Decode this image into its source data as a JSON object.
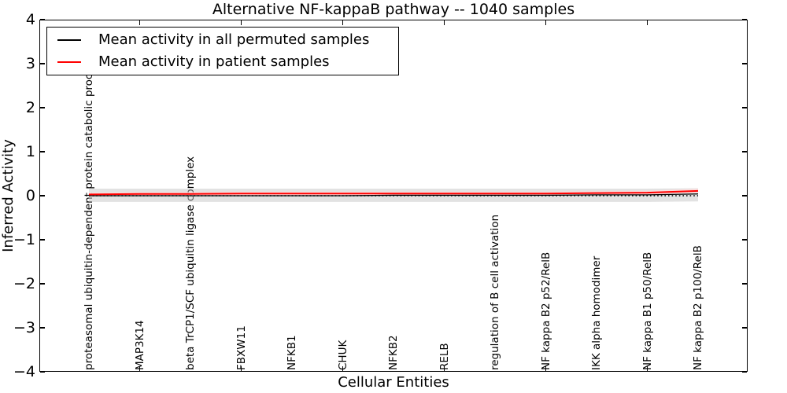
{
  "figure": {
    "title": "Alternative NF-kappaB pathway -- 1040 samples",
    "xlabel": "Cellular Entities",
    "ylabel": "Inferred Activity"
  },
  "legend": {
    "items": [
      {
        "label": "Mean activity in all permuted samples",
        "color": "#000000"
      },
      {
        "label": "Mean activity in patient samples",
        "color": "#ff0000"
      }
    ]
  },
  "chart_data": {
    "type": "line",
    "title": "Alternative NF-kappaB pathway -- 1040 samples",
    "xlabel": "Cellular Entities",
    "ylabel": "Inferred Activity",
    "ylim": [
      -4,
      4
    ],
    "yticks": [
      4,
      3,
      2,
      1,
      0,
      -1,
      -2,
      -3,
      -4
    ],
    "grid": false,
    "legend_position": "upper left",
    "x_tick_category_indices": [
      1,
      3,
      5,
      7,
      9,
      11
    ],
    "categories": [
      "proteasomal ubiquitin-dependent protein catabolic process",
      "MAP3K14",
      "beta TrCP1/SCF ubiquitin ligase complex",
      "FBXW11",
      "NFKB1",
      "CHUK",
      "NFKB2",
      "RELB",
      "regulation of B cell activation",
      "NF kappa B2 p52/RelB",
      "IKK alpha homodimer",
      "NF kappa B1 p50/RelB",
      "NF kappa B2 p100/RelB"
    ],
    "series": [
      {
        "name": "Mean activity in all permuted samples",
        "color": "#000000",
        "line_style": "solid",
        "line_width": 1.3,
        "values": [
          0.0,
          0.0,
          0.0,
          0.0,
          0.0,
          0.0,
          0.01,
          0.01,
          0.01,
          0.01,
          0.02,
          0.02,
          0.04
        ]
      },
      {
        "name": "Mean activity in patient samples",
        "color": "#ff0000",
        "line_style": "solid",
        "line_width": 2,
        "values": [
          0.03,
          0.04,
          0.04,
          0.05,
          0.05,
          0.05,
          0.05,
          0.05,
          0.05,
          0.05,
          0.06,
          0.07,
          0.11
        ]
      }
    ],
    "reference_line": {
      "y": 0,
      "color": "#000000",
      "line_style": "dotted"
    },
    "bands": [
      {
        "name": "permuted samples std band",
        "color": "#bfbfbf",
        "opacity": 0.45,
        "upper": [
          0.16,
          0.16,
          0.16,
          0.16,
          0.16,
          0.16,
          0.16,
          0.16,
          0.16,
          0.16,
          0.16,
          0.16,
          0.17
        ],
        "lower": [
          -0.14,
          -0.14,
          -0.14,
          -0.14,
          -0.14,
          -0.14,
          -0.14,
          -0.14,
          -0.14,
          -0.14,
          -0.14,
          -0.14,
          -0.13
        ]
      },
      {
        "name": "patient samples std band",
        "color": "#ffdcdc",
        "opacity": 0.85,
        "upper": [
          0.07,
          0.08,
          0.08,
          0.09,
          0.09,
          0.09,
          0.09,
          0.09,
          0.09,
          0.09,
          0.1,
          0.11,
          0.16
        ],
        "lower": [
          -0.01,
          0.0,
          0.0,
          0.01,
          0.01,
          0.01,
          0.01,
          0.01,
          0.01,
          0.01,
          0.02,
          0.03,
          0.06
        ]
      }
    ]
  }
}
